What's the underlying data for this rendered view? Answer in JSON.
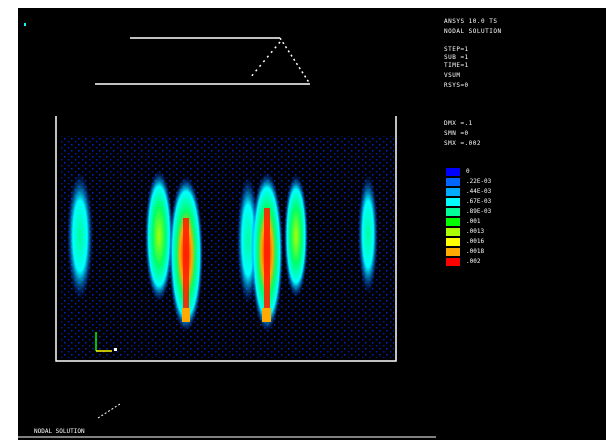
{
  "window": {
    "background": "#000000",
    "frame_color": "#ffffff",
    "marker_color": "#00ffff"
  },
  "info_panel": {
    "lines": [
      "ANSYS 10.0 TS",
      "NODAL SOLUTION",
      "STEP=1",
      "SUB =1",
      "TIME=1",
      "VSUM",
      "RSYS=0",
      "DMX =.1",
      "SMN =0",
      "SMX =.002"
    ]
  },
  "legend": {
    "title": "",
    "colors": [
      "#0000ff",
      "#0066ff",
      "#00aaff",
      "#00ffff",
      "#00ff99",
      "#00ff00",
      "#aaff00",
      "#ffff00",
      "#ffaa00",
      "#ff0000"
    ],
    "labels": [
      "0",
      ".22E-03",
      ".44E-03",
      ".67E-03",
      ".89E-03",
      ".001",
      ".0013",
      ".0016",
      ".0018",
      ".002"
    ]
  },
  "footer": {
    "label": "NODAL SOLUTION"
  },
  "plot": {
    "columns": [
      {
        "peak": 0.45
      },
      {
        "peak": 0.55
      },
      {
        "peak": 1.0
      },
      {
        "peak": 0.4
      },
      {
        "peak": 1.0
      },
      {
        "peak": 0.55
      },
      {
        "peak": 0.4
      }
    ]
  }
}
